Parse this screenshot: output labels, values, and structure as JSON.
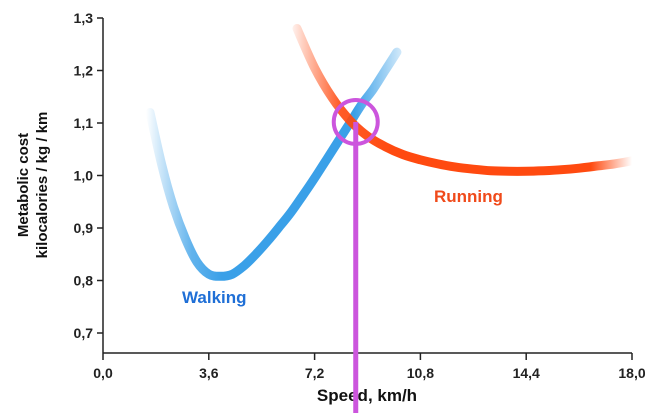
{
  "chart_data": {
    "type": "line",
    "xlabel": "Speed, km/h",
    "ylabel_lines": [
      "Metabolic cost",
      "kilocalories / kg / km"
    ],
    "xlim": [
      0,
      18
    ],
    "ylim": [
      0.7,
      1.3
    ],
    "x_ticks": [
      "0,0",
      "3,6",
      "7,2",
      "10,8",
      "14,4",
      "18,0"
    ],
    "y_ticks": [
      "0,7",
      "0,8",
      "0,9",
      "1,0",
      "1,1",
      "1,2",
      "1,3"
    ],
    "x_tick_values": [
      0,
      3.6,
      7.2,
      10.8,
      14.4,
      18.0
    ],
    "y_tick_values": [
      0.7,
      0.8,
      0.9,
      1.0,
      1.1,
      1.2,
      1.3
    ],
    "grid": false,
    "series": [
      {
        "name": "Walking",
        "color": "#3aa0e8",
        "label_color": "#1f6fd6",
        "x": [
          1.6,
          2.0,
          2.4,
          2.8,
          3.2,
          3.6,
          4.0,
          4.4,
          4.8,
          5.2,
          5.6,
          6.0,
          6.4,
          6.8,
          7.2,
          7.6,
          8.0,
          8.4,
          8.8,
          9.2,
          9.6,
          10.0
        ],
        "values": [
          1.12,
          1.02,
          0.94,
          0.88,
          0.835,
          0.812,
          0.808,
          0.812,
          0.828,
          0.85,
          0.875,
          0.902,
          0.93,
          0.962,
          0.995,
          1.03,
          1.065,
          1.1,
          1.135,
          1.165,
          1.2,
          1.235
        ]
      },
      {
        "name": "Running",
        "color": "#ff4a10",
        "label_color": "#f04a1a",
        "x": [
          6.6,
          7.2,
          7.8,
          8.4,
          9.0,
          9.6,
          10.2,
          10.8,
          11.4,
          12.0,
          12.6,
          13.2,
          13.8,
          14.4,
          15.0,
          15.6,
          16.2,
          16.8,
          17.4,
          18.0
        ],
        "values": [
          1.28,
          1.205,
          1.148,
          1.105,
          1.075,
          1.055,
          1.04,
          1.03,
          1.022,
          1.016,
          1.012,
          1.009,
          1.008,
          1.008,
          1.009,
          1.011,
          1.014,
          1.018,
          1.022,
          1.028
        ]
      }
    ],
    "annotations": {
      "intersection": {
        "x": 8.6,
        "y": 1.102,
        "color": "#cc55dd"
      }
    }
  }
}
